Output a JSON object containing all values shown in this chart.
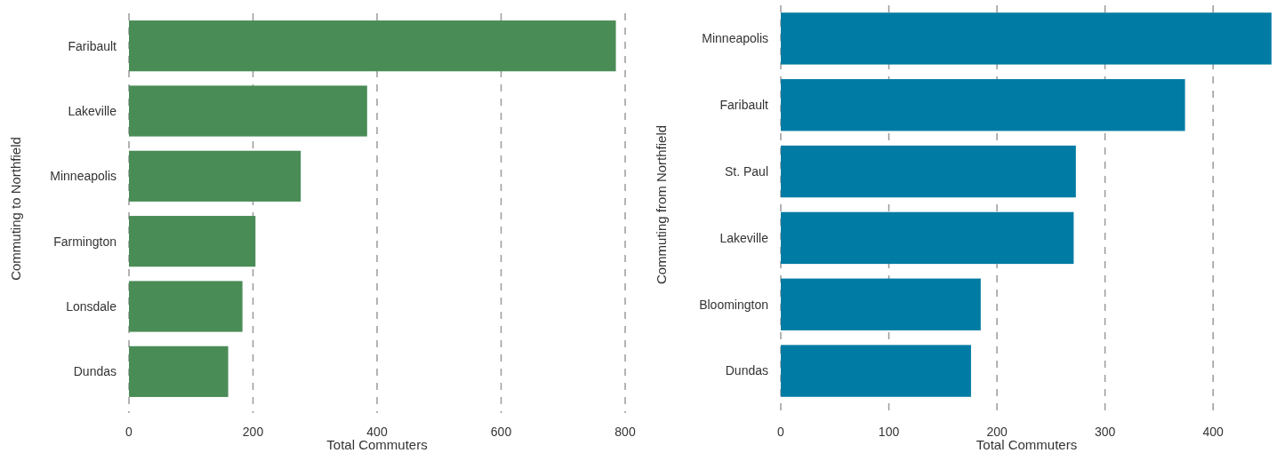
{
  "chart_data": [
    {
      "type": "bar",
      "orientation": "horizontal",
      "categories": [
        "Faribault",
        "Lakeville",
        "Minneapolis",
        "Farmington",
        "Lonsdale",
        "Dundas"
      ],
      "values": [
        785,
        384,
        277,
        204,
        183,
        160
      ],
      "color": "#4a8c56",
      "xlim": [
        0,
        800
      ],
      "xticks": [
        0,
        200,
        400,
        600,
        800
      ],
      "xlabel": "Total Commuters",
      "ylabel": "Commuting to Northfield",
      "grid": "x",
      "line_style": "dashed"
    },
    {
      "type": "bar",
      "orientation": "horizontal",
      "categories": [
        "Minneapolis",
        "Faribault",
        "St. Paul",
        "Lakeville",
        "Bloomington",
        "Dundas"
      ],
      "values": [
        454,
        374,
        273,
        271,
        185,
        176
      ],
      "color": "#007ba4",
      "xlim": [
        0,
        455
      ],
      "xticks": [
        0,
        100,
        200,
        300,
        400
      ],
      "xlabel": "Total Commuters",
      "ylabel": "Commuting from Northfield",
      "grid": "x",
      "line_style": "dashed"
    }
  ]
}
